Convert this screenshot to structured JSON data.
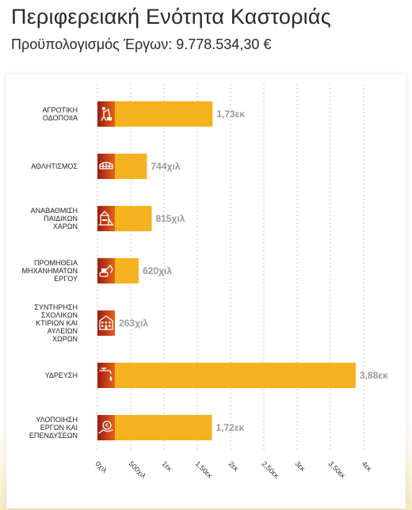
{
  "header": {
    "title": "Περιφερειακή Ενότητα Καστοριάς",
    "subtitle": "Προϋπολογισμός Έργων: 9.778.534,30 €"
  },
  "colors": {
    "bar": "#f5b21f",
    "icon_gradient_start": "#9b1c12",
    "icon_gradient_end": "#e8621a",
    "value_label": "#9a9a9a"
  },
  "chart_data": {
    "type": "bar",
    "orientation": "horizontal",
    "title": "",
    "xlabel": "",
    "ylabel": "",
    "xlim": [
      0,
      4000000
    ],
    "grid": true,
    "legend": "none",
    "categories": [
      [
        "ΑΓΡΟΤΙΚΗ",
        "ΟΔΟΠΟΙΙΑ"
      ],
      [
        "ΑΘΛΗΤΙΣΜΟΣ"
      ],
      [
        "ΑΝΑΒΑΘΜΙΣΗ",
        "ΠΑΙΔΙΚΩΝ",
        "ΧΑΡΩΝ"
      ],
      [
        "ΠΡΟΜΗΘΕΙΑ",
        "ΜΗΧΑΝΗΜΑΤΩΝ",
        "ΕΡΓΟΥ"
      ],
      [
        "ΣΥΝΤΗΡΗΣΗ",
        "ΣΧΟΛΙΚΩΝ",
        "ΚΤΙΡΙΩΝ ΚΑΙ",
        "ΑΥΛΕΙΩΝ",
        "ΧΩΡΩΝ"
      ],
      [
        "ΥΔΡΕΥΣΗ"
      ],
      [
        "ΥΛΟΠΟΙΗΣΗ",
        "ΕΡΓΩΝ ΚΑΙ",
        "ΕΠΕΝΔΥΣΕΩΝ"
      ]
    ],
    "icons": [
      "road-worker-icon",
      "stadium-icon",
      "playground-icon",
      "excavator-icon",
      "school-building-icon",
      "water-tap-icon",
      "investment-hand-icon"
    ],
    "values": [
      1730000,
      744000,
      815000,
      620000,
      263000,
      3880000,
      1720000
    ],
    "value_labels": [
      "1,73εκ",
      "744χιλ",
      "815χιλ",
      "620χιλ",
      "263χιλ",
      "3,88εκ",
      "1,72εκ"
    ],
    "x_ticks": [
      0,
      500000,
      1000000,
      1500000,
      2000000,
      2500000,
      3000000,
      3500000,
      4000000
    ],
    "x_tick_labels": [
      "0χιλ",
      "500χιλ",
      "1εκ",
      "1,50εκ",
      "2εκ",
      "2,50εκ",
      "3εκ",
      "3,50εκ",
      "4εκ"
    ]
  }
}
